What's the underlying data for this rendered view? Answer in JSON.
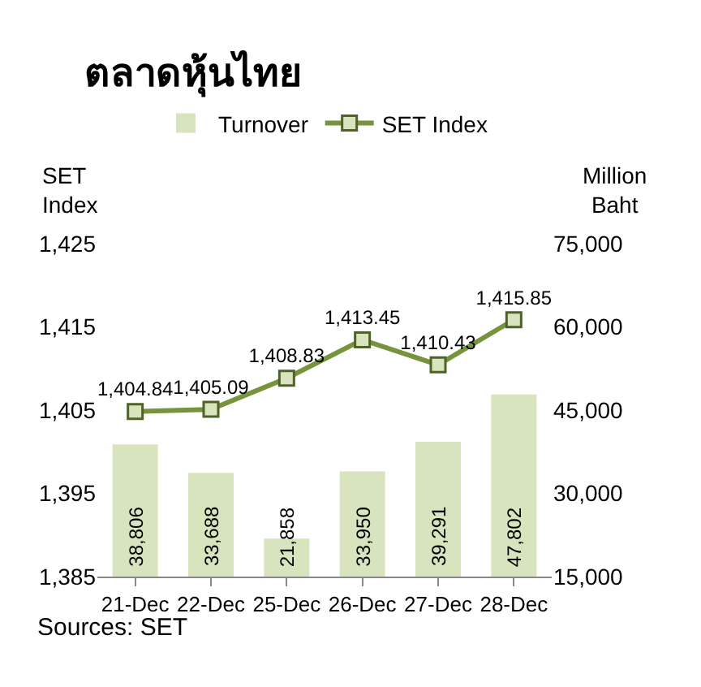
{
  "chart_data": {
    "type": "bar",
    "title": "ตลาดหุ้นไทย",
    "ylabel": "SET Index",
    "y2label": "Million Baht",
    "categories": [
      "21-Dec",
      "22-Dec",
      "25-Dec",
      "26-Dec",
      "27-Dec",
      "28-Dec"
    ],
    "series": [
      {
        "name": "Turnover",
        "axis": "y2",
        "color": "#d7e4bd",
        "values": [
          38806,
          33688,
          21858,
          33950,
          39291,
          47802
        ],
        "value_labels": [
          "38,806",
          "33,688",
          "21,858",
          "33,950",
          "39,291",
          "47,802"
        ]
      },
      {
        "name": "SET Index",
        "type": "line",
        "axis": "y",
        "color": "#77933c",
        "marker": "square",
        "values": [
          1404.84,
          1405.09,
          1408.83,
          1413.45,
          1410.43,
          1415.85
        ],
        "value_labels": [
          "1,404.84",
          "1,405.09",
          "1,408.83",
          "1,413.45",
          "1,410.43",
          "1,415.85"
        ]
      }
    ],
    "ylim": [
      1385,
      1425
    ],
    "yticks": [
      {
        "value": 1385,
        "label": "1,385"
      },
      {
        "value": 1395,
        "label": "1,395"
      },
      {
        "value": 1405,
        "label": "1,405"
      },
      {
        "value": 1415,
        "label": "1,415"
      },
      {
        "value": 1425,
        "label": "1,425"
      }
    ],
    "y2lim": [
      15000,
      75000
    ],
    "y2ticks": [
      {
        "value": 15000,
        "label": "15,000"
      },
      {
        "value": 30000,
        "label": "30,000"
      },
      {
        "value": 45000,
        "label": "45,000"
      },
      {
        "value": 60000,
        "label": "60,000"
      },
      {
        "value": 75000,
        "label": "75,000"
      }
    ],
    "grid": false,
    "legend": "top",
    "annotations": [
      "Sources: SET"
    ]
  }
}
